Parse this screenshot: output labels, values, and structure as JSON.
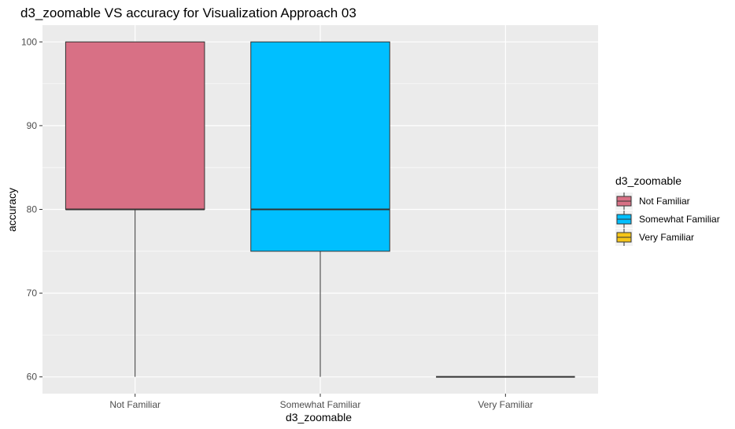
{
  "chart_data": {
    "type": "boxplot",
    "title": "d3_zoomable VS accuracy for Visualization Approach 03",
    "xlabel": "d3_zoomable",
    "ylabel": "accuracy",
    "categories": [
      "Not Familiar",
      "Somewhat Familiar",
      "Very Familiar"
    ],
    "ylim": [
      58,
      102
    ],
    "yticks": [
      60,
      70,
      80,
      90,
      100
    ],
    "boxes": [
      {
        "category": "Not Familiar",
        "min": 60,
        "q1": 80,
        "median": 80,
        "q3": 100,
        "max": 100,
        "color": "#D87085"
      },
      {
        "category": "Somewhat Familiar",
        "min": 60,
        "q1": 75,
        "median": 80,
        "q3": 100,
        "max": 100,
        "color": "#00BFFF"
      },
      {
        "category": "Very Familiar",
        "min": 60,
        "q1": 60,
        "median": 60,
        "q3": 60,
        "max": 60,
        "color": "#F5C518"
      }
    ],
    "legend": {
      "title": "d3_zoomable",
      "position": "right",
      "items": [
        {
          "label": "Not Familiar",
          "color": "#D87085"
        },
        {
          "label": "Somewhat Familiar",
          "color": "#00BFFF"
        },
        {
          "label": "Very Familiar",
          "color": "#F5C518"
        }
      ]
    },
    "grid": true,
    "panel_background": "#EBEBEB"
  }
}
